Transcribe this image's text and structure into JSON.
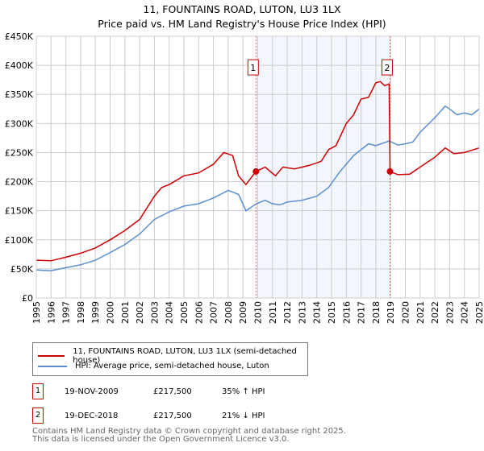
{
  "title_line1": "11, FOUNTAINS ROAD, LUTON, LU3 1LX",
  "title_line2": "Price paid vs. HM Land Registry's House Price Index (HPI)",
  "chart_data": {
    "type": "line",
    "ylim": [
      0,
      450000
    ],
    "xlim": [
      1995,
      2025
    ],
    "yticks": [
      {
        "v": 0,
        "l": "£0"
      },
      {
        "v": 50000,
        "l": "£50K"
      },
      {
        "v": 100000,
        "l": "£100K"
      },
      {
        "v": 150000,
        "l": "£150K"
      },
      {
        "v": 200000,
        "l": "£200K"
      },
      {
        "v": 250000,
        "l": "£250K"
      },
      {
        "v": 300000,
        "l": "£300K"
      },
      {
        "v": 350000,
        "l": "£350K"
      },
      {
        "v": 400000,
        "l": "£400K"
      },
      {
        "v": 450000,
        "l": "£450K"
      }
    ],
    "xticks": [
      "1995",
      "1996",
      "1997",
      "1998",
      "1999",
      "2000",
      "2001",
      "2002",
      "2003",
      "2004",
      "2005",
      "2006",
      "2007",
      "2008",
      "2009",
      "2010",
      "2011",
      "2012",
      "2013",
      "2014",
      "2015",
      "2016",
      "2017",
      "2018",
      "2019",
      "2020",
      "2021",
      "2022",
      "2023",
      "2024",
      "2025"
    ],
    "grid": true,
    "series": [
      {
        "name": "11, FOUNTAINS ROAD, LUTON, LU3 1LX (semi-detached house)",
        "color": "#cc0000",
        "x": [
          1995,
          1996,
          1997,
          1998,
          1999,
          2000,
          2001,
          2002,
          2003,
          2003.5,
          2004,
          2005,
          2006,
          2007,
          2007.7,
          2008.3,
          2008.7,
          2009.2,
          2009.88,
          2010.5,
          2011.2,
          2011.7,
          2012.5,
          2013.5,
          2014.3,
          2014.8,
          2015.3,
          2016,
          2016.5,
          2017,
          2017.5,
          2018,
          2018.3,
          2018.6,
          2018.9,
          2018.96,
          2019.5,
          2020.3,
          2021,
          2022,
          2022.7,
          2023.3,
          2024,
          2025
        ],
        "y": [
          65000,
          64000,
          70000,
          77000,
          86000,
          100000,
          116000,
          135000,
          175000,
          190000,
          195000,
          210000,
          215000,
          230000,
          250000,
          245000,
          210000,
          195000,
          217500,
          225000,
          210000,
          225000,
          222000,
          228000,
          235000,
          255000,
          262000,
          300000,
          315000,
          342000,
          345000,
          370000,
          372000,
          365000,
          368000,
          217500,
          212000,
          213000,
          225000,
          242000,
          258000,
          248000,
          250000,
          258000
        ]
      },
      {
        "name": "HPI: Average price, semi-detached house, Luton",
        "color": "#5b8fd0",
        "x": [
          1995,
          1996,
          1997,
          1998,
          1999,
          2000,
          2001,
          2002,
          2003,
          2004,
          2005,
          2006,
          2007,
          2008,
          2008.7,
          2009.2,
          2009.9,
          2010.5,
          2011,
          2011.5,
          2012,
          2013,
          2014,
          2014.8,
          2015.5,
          2016.5,
          2017.5,
          2018,
          2018.9,
          2019.5,
          2020,
          2020.5,
          2021,
          2022,
          2022.7,
          2023,
          2023.5,
          2024,
          2024.5,
          2025
        ],
        "y": [
          48000,
          47000,
          52000,
          57000,
          65000,
          78000,
          92000,
          110000,
          135000,
          148000,
          158000,
          162000,
          172000,
          185000,
          178000,
          150000,
          162000,
          168000,
          162000,
          160000,
          165000,
          168000,
          175000,
          190000,
          215000,
          245000,
          265000,
          262000,
          270000,
          263000,
          265000,
          268000,
          285000,
          310000,
          330000,
          325000,
          315000,
          318000,
          315000,
          325000
        ]
      }
    ],
    "markers": [
      {
        "label": "1",
        "x": 2009.88,
        "y": 217500
      },
      {
        "label": "2",
        "x": 2018.96,
        "y": 217500
      }
    ],
    "shaded_range": [
      2009.88,
      2018.96
    ]
  },
  "legend": [
    "11, FOUNTAINS ROAD, LUTON, LU3 1LX (semi-detached house)",
    "HPI: Average price, semi-detached house, Luton"
  ],
  "transactions": [
    {
      "num": "1",
      "date": "19-NOV-2009",
      "price": "£217,500",
      "hpi": "35% ↑ HPI"
    },
    {
      "num": "2",
      "date": "19-DEC-2018",
      "price": "£217,500",
      "hpi": "21% ↓ HPI"
    }
  ],
  "footer1": "Contains HM Land Registry data © Crown copyright and database right 2025.",
  "footer2": "This data is licensed under the Open Government Licence v3.0."
}
